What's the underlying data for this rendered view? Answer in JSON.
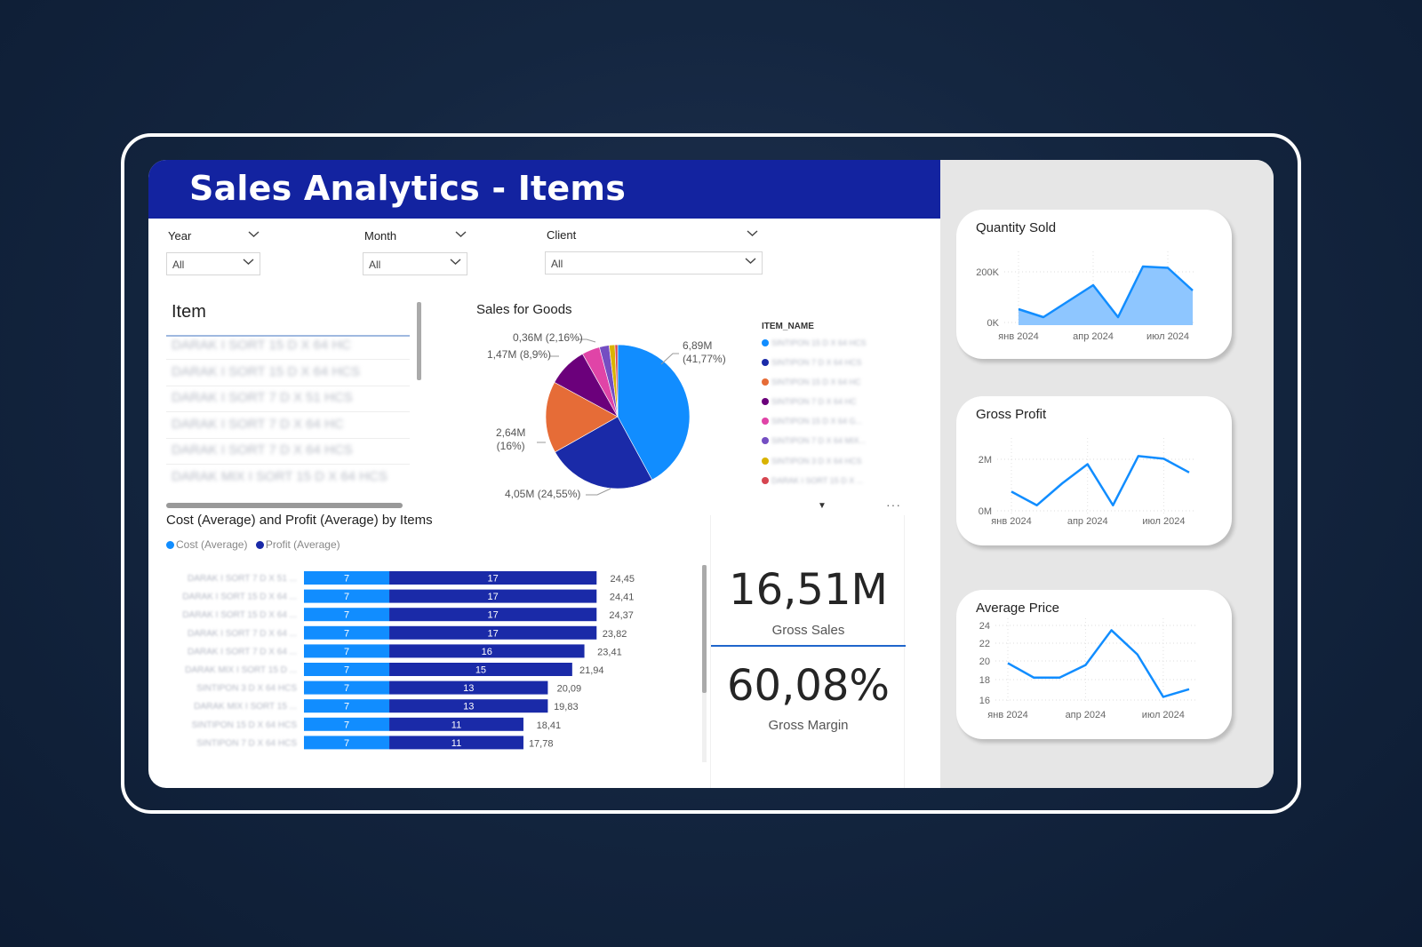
{
  "header": {
    "title": "Sales Analytics  - Items"
  },
  "slicers": {
    "year": {
      "label": "Year",
      "value": "All"
    },
    "month": {
      "label": "Month",
      "value": "All"
    },
    "client": {
      "label": "Client",
      "value": "All"
    }
  },
  "item_list": {
    "title": "Item",
    "rows": [
      "DARAK I SORT 15 D X 64 HC",
      "DARAK I SORT 15 D X 64 HCS",
      "DARAK I SORT 7 D X 51 HCS",
      "DARAK I SORT 7 D X 64 HC",
      "DARAK I SORT 7 D X 64 HCS",
      "DARAK MIX I SORT 15 D X 64 HCS"
    ]
  },
  "pie": {
    "title": "Sales for Goods",
    "legend_title": "ITEM_NAME",
    "legend": [
      {
        "name": "SINTIPON 15 D X 64 HCS",
        "color": "#118dff"
      },
      {
        "name": "SINTIPON 7 D X 64 HCS",
        "color": "#1a2aa8"
      },
      {
        "name": "SINTIPON 15 D X 64 HC",
        "color": "#e66c37"
      },
      {
        "name": "SINTIPON 7 D X 64 HC",
        "color": "#6b007b"
      },
      {
        "name": "SINTIPON 15 D X 64 G...",
        "color": "#e044a7"
      },
      {
        "name": "SINTIPON 7 D X 64 MIX...",
        "color": "#744ec2"
      },
      {
        "name": "SINTIPON 3 D X 64 HCS",
        "color": "#d9b300"
      },
      {
        "name": "DARAK I SORT 15 D X ...",
        "color": "#d64550"
      }
    ],
    "labels": [
      {
        "value": "6,89M",
        "pct": "(41,77%)"
      },
      {
        "value": "4,05M",
        "pct": "(24,55%)"
      },
      {
        "value": "2,64M",
        "pct": "(16%)"
      },
      {
        "value": "1,47M",
        "pct": "(8,9%)"
      },
      {
        "value": "0,36M",
        "pct": "(2,16%)"
      }
    ]
  },
  "chart_data": [
    {
      "type": "pie",
      "title": "Sales for Goods",
      "categories": [
        "SINTIPON 15 D X 64 HCS",
        "SINTIPON 7 D X 64 HCS",
        "SINTIPON 15 D X 64 HC",
        "SINTIPON 7 D X 64 HC",
        "SINTIPON 15 D X 64 G...",
        "SINTIPON 7 D X 64 MIX...",
        "SINTIPON 3 D X 64 HCS",
        "DARAK I SORT 15 D X ..."
      ],
      "values": [
        41.77,
        24.55,
        16.0,
        8.9,
        4.0,
        2.16,
        1.3,
        0.6
      ],
      "colors": [
        "#118dff",
        "#1a2aa8",
        "#e66c37",
        "#6b007b",
        "#e044a7",
        "#744ec2",
        "#d9b300",
        "#d64550"
      ]
    },
    {
      "type": "bar",
      "title": "Cost (Average) and Profit (Average) by Items",
      "categories": [
        "DARAK I SORT 7 D X 51 ...",
        "DARAK I SORT 15 D X 64 ...",
        "DARAK I SORT 15 D X 64 ...",
        "DARAK I SORT 7 D X 64 ...",
        "DARAK I SORT 7 D X 64 ...",
        "DARAK MIX I SORT 15 D ...",
        "SINTIPON 3 D X 64 HCS",
        "DARAK MIX I SORT 15 ...",
        "SINTIPON 15 D X 64 HCS",
        "SINTIPON 7 D X 64 HCS"
      ],
      "series": [
        {
          "name": "Cost (Average)",
          "color": "#118dff",
          "values": [
            7,
            7,
            7,
            7,
            7,
            7,
            7,
            7,
            7,
            7
          ]
        },
        {
          "name": "Profit (Average)",
          "color": "#1a2aa8",
          "values": [
            17,
            17,
            17,
            17,
            16,
            15,
            13,
            13,
            11,
            11
          ]
        }
      ],
      "totals": [
        "24,45",
        "24,41",
        "24,37",
        "23,82",
        "23,41",
        "21,94",
        "20,09",
        "19,83",
        "18,41",
        "17,78"
      ],
      "total_values": [
        24.45,
        24.41,
        24.37,
        23.82,
        23.41,
        21.94,
        20.09,
        19.83,
        18.41,
        17.78
      ],
      "xlim": [
        0,
        26
      ]
    },
    {
      "type": "area",
      "title": "Quantity Sold",
      "x": [
        "2024-01",
        "2024-02",
        "2024-03",
        "2024-04",
        "2024-05",
        "2024-06",
        "2024-07",
        "2024-08"
      ],
      "xticks": [
        "янв 2024",
        "апр 2024",
        "июл 2024"
      ],
      "yticks": [
        "200K",
        "0K"
      ],
      "values": [
        60000,
        30000,
        90000,
        150000,
        30000,
        220000,
        215000,
        130000
      ],
      "ylim": [
        0,
        250000
      ]
    },
    {
      "type": "line",
      "title": "Gross Profit",
      "x": [
        "2024-01",
        "2024-02",
        "2024-03",
        "2024-04",
        "2024-05",
        "2024-06",
        "2024-07",
        "2024-08"
      ],
      "xticks": [
        "янв 2024",
        "апр 2024",
        "июл 2024"
      ],
      "yticks": [
        "2M",
        "0M"
      ],
      "values": [
        800000,
        300000,
        1100000,
        1800000,
        300000,
        2100000,
        2000000,
        1500000
      ],
      "ylim": [
        0,
        2500000
      ]
    },
    {
      "type": "line",
      "title": "Average Price",
      "x": [
        "2024-01",
        "2024-02",
        "2024-03",
        "2024-04",
        "2024-05",
        "2024-06",
        "2024-07",
        "2024-08"
      ],
      "xticks": [
        "янв 2024",
        "апр 2024",
        "июл 2024"
      ],
      "yticks": [
        "24",
        "22",
        "20",
        "18",
        "16"
      ],
      "values": [
        20.1,
        18.6,
        18.6,
        19.9,
        23.5,
        21.0,
        16.6,
        17.4
      ],
      "ylim": [
        16,
        24
      ]
    }
  ],
  "bar_chart": {
    "title": "Cost (Average) and Profit (Average) by Items",
    "legend_cost": "Cost (Average)",
    "legend_profit": "Profit (Average)"
  },
  "cards": {
    "gross_sales": {
      "value": "16,51M",
      "label": "Gross Sales"
    },
    "gross_margin": {
      "value": "60,08%",
      "label": "Gross Margin"
    }
  },
  "mini_charts": {
    "quantity": {
      "title": "Quantity Sold"
    },
    "profit": {
      "title": "Gross Profit"
    },
    "price": {
      "title": "Average Price"
    }
  },
  "colors": {
    "header": "#1323a0",
    "accent": "#118dff",
    "dark_blue": "#1a2aa8"
  }
}
